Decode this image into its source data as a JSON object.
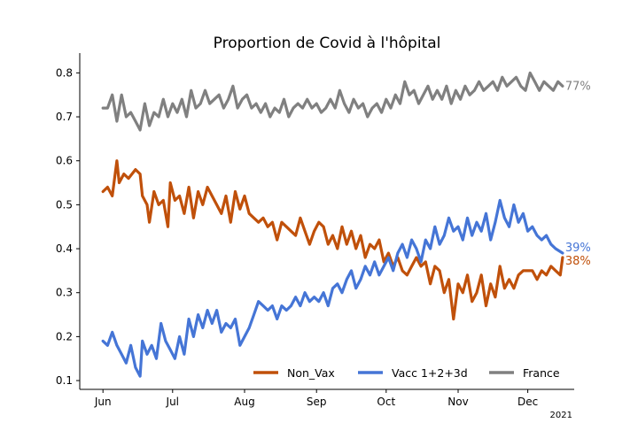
{
  "chart_data": {
    "type": "line",
    "title": "Proportion de Covid à l'hôpital",
    "year_note": "2021",
    "x_tick_labels": [
      "Jun",
      "Jul",
      "Aug",
      "Sep",
      "Oct",
      "Nov",
      "Dec"
    ],
    "x_tick_days": [
      0,
      30,
      61,
      92,
      122,
      153,
      183
    ],
    "xlim": [
      -10,
      203
    ],
    "ylim": [
      0.08,
      0.845
    ],
    "y_ticks": [
      "0.1",
      "0.2",
      "0.3",
      "0.4",
      "0.5",
      "0.6",
      "0.7",
      "0.8"
    ],
    "grid": false,
    "legend_position": "bottom-right",
    "series": [
      {
        "name": "Non_Vax",
        "color": "#c0500a",
        "end_label": "38%",
        "points": [
          [
            0,
            0.53
          ],
          [
            2,
            0.54
          ],
          [
            4,
            0.52
          ],
          [
            6,
            0.6
          ],
          [
            7,
            0.55
          ],
          [
            9,
            0.57
          ],
          [
            11,
            0.56
          ],
          [
            14,
            0.58
          ],
          [
            16,
            0.57
          ],
          [
            17,
            0.52
          ],
          [
            19,
            0.5
          ],
          [
            20,
            0.46
          ],
          [
            22,
            0.53
          ],
          [
            24,
            0.5
          ],
          [
            26,
            0.51
          ],
          [
            28,
            0.45
          ],
          [
            29,
            0.55
          ],
          [
            31,
            0.51
          ],
          [
            33,
            0.52
          ],
          [
            35,
            0.48
          ],
          [
            37,
            0.54
          ],
          [
            39,
            0.47
          ],
          [
            41,
            0.53
          ],
          [
            43,
            0.5
          ],
          [
            45,
            0.54
          ],
          [
            47,
            0.52
          ],
          [
            49,
            0.5
          ],
          [
            51,
            0.48
          ],
          [
            53,
            0.52
          ],
          [
            55,
            0.46
          ],
          [
            57,
            0.53
          ],
          [
            59,
            0.49
          ],
          [
            61,
            0.52
          ],
          [
            63,
            0.48
          ],
          [
            65,
            0.47
          ],
          [
            67,
            0.46
          ],
          [
            69,
            0.47
          ],
          [
            71,
            0.45
          ],
          [
            73,
            0.46
          ],
          [
            75,
            0.42
          ],
          [
            77,
            0.46
          ],
          [
            79,
            0.45
          ],
          [
            81,
            0.44
          ],
          [
            83,
            0.43
          ],
          [
            85,
            0.47
          ],
          [
            87,
            0.44
          ],
          [
            89,
            0.41
          ],
          [
            91,
            0.44
          ],
          [
            93,
            0.46
          ],
          [
            95,
            0.45
          ],
          [
            97,
            0.41
          ],
          [
            99,
            0.43
          ],
          [
            101,
            0.4
          ],
          [
            103,
            0.45
          ],
          [
            105,
            0.41
          ],
          [
            107,
            0.44
          ],
          [
            109,
            0.4
          ],
          [
            111,
            0.43
          ],
          [
            113,
            0.38
          ],
          [
            115,
            0.41
          ],
          [
            117,
            0.4
          ],
          [
            119,
            0.42
          ],
          [
            121,
            0.37
          ],
          [
            123,
            0.39
          ],
          [
            125,
            0.36
          ],
          [
            127,
            0.38
          ],
          [
            129,
            0.35
          ],
          [
            131,
            0.34
          ],
          [
            133,
            0.36
          ],
          [
            135,
            0.38
          ],
          [
            137,
            0.36
          ],
          [
            139,
            0.37
          ],
          [
            141,
            0.32
          ],
          [
            143,
            0.36
          ],
          [
            145,
            0.35
          ],
          [
            147,
            0.3
          ],
          [
            149,
            0.33
          ],
          [
            151,
            0.24
          ],
          [
            153,
            0.32
          ],
          [
            155,
            0.3
          ],
          [
            157,
            0.34
          ],
          [
            159,
            0.28
          ],
          [
            161,
            0.3
          ],
          [
            163,
            0.34
          ],
          [
            165,
            0.27
          ],
          [
            167,
            0.32
          ],
          [
            169,
            0.29
          ],
          [
            171,
            0.36
          ],
          [
            173,
            0.31
          ],
          [
            175,
            0.33
          ],
          [
            177,
            0.31
          ],
          [
            179,
            0.34
          ],
          [
            181,
            0.35
          ],
          [
            183,
            0.35
          ],
          [
            185,
            0.35
          ],
          [
            187,
            0.33
          ],
          [
            189,
            0.35
          ],
          [
            191,
            0.34
          ],
          [
            193,
            0.36
          ],
          [
            195,
            0.35
          ],
          [
            197,
            0.34
          ],
          [
            198,
            0.38
          ]
        ]
      },
      {
        "name": "Vacc 1+2+3d",
        "color": "#4575d6",
        "end_label": "39%",
        "points": [
          [
            0,
            0.19
          ],
          [
            2,
            0.18
          ],
          [
            4,
            0.21
          ],
          [
            6,
            0.18
          ],
          [
            8,
            0.16
          ],
          [
            10,
            0.14
          ],
          [
            12,
            0.18
          ],
          [
            14,
            0.13
          ],
          [
            16,
            0.11
          ],
          [
            17,
            0.19
          ],
          [
            19,
            0.16
          ],
          [
            21,
            0.18
          ],
          [
            23,
            0.15
          ],
          [
            25,
            0.23
          ],
          [
            27,
            0.19
          ],
          [
            29,
            0.17
          ],
          [
            31,
            0.15
          ],
          [
            33,
            0.2
          ],
          [
            35,
            0.16
          ],
          [
            37,
            0.24
          ],
          [
            39,
            0.2
          ],
          [
            41,
            0.25
          ],
          [
            43,
            0.22
          ],
          [
            45,
            0.26
          ],
          [
            47,
            0.23
          ],
          [
            49,
            0.26
          ],
          [
            51,
            0.21
          ],
          [
            53,
            0.23
          ],
          [
            55,
            0.22
          ],
          [
            57,
            0.24
          ],
          [
            59,
            0.18
          ],
          [
            61,
            0.2
          ],
          [
            63,
            0.22
          ],
          [
            65,
            0.25
          ],
          [
            67,
            0.28
          ],
          [
            69,
            0.27
          ],
          [
            71,
            0.26
          ],
          [
            73,
            0.27
          ],
          [
            75,
            0.24
          ],
          [
            77,
            0.27
          ],
          [
            79,
            0.26
          ],
          [
            81,
            0.27
          ],
          [
            83,
            0.29
          ],
          [
            85,
            0.27
          ],
          [
            87,
            0.3
          ],
          [
            89,
            0.28
          ],
          [
            91,
            0.29
          ],
          [
            93,
            0.28
          ],
          [
            95,
            0.3
          ],
          [
            97,
            0.27
          ],
          [
            99,
            0.31
          ],
          [
            101,
            0.32
          ],
          [
            103,
            0.3
          ],
          [
            105,
            0.33
          ],
          [
            107,
            0.35
          ],
          [
            109,
            0.31
          ],
          [
            111,
            0.33
          ],
          [
            113,
            0.36
          ],
          [
            115,
            0.34
          ],
          [
            117,
            0.37
          ],
          [
            119,
            0.34
          ],
          [
            121,
            0.36
          ],
          [
            123,
            0.38
          ],
          [
            125,
            0.35
          ],
          [
            127,
            0.39
          ],
          [
            129,
            0.41
          ],
          [
            131,
            0.38
          ],
          [
            133,
            0.42
          ],
          [
            135,
            0.4
          ],
          [
            137,
            0.37
          ],
          [
            139,
            0.42
          ],
          [
            141,
            0.4
          ],
          [
            143,
            0.45
          ],
          [
            145,
            0.41
          ],
          [
            147,
            0.43
          ],
          [
            149,
            0.47
          ],
          [
            151,
            0.44
          ],
          [
            153,
            0.45
          ],
          [
            155,
            0.42
          ],
          [
            157,
            0.47
          ],
          [
            159,
            0.43
          ],
          [
            161,
            0.46
          ],
          [
            163,
            0.44
          ],
          [
            165,
            0.48
          ],
          [
            167,
            0.42
          ],
          [
            169,
            0.46
          ],
          [
            171,
            0.51
          ],
          [
            173,
            0.47
          ],
          [
            175,
            0.45
          ],
          [
            177,
            0.5
          ],
          [
            179,
            0.46
          ],
          [
            181,
            0.48
          ],
          [
            183,
            0.44
          ],
          [
            185,
            0.45
          ],
          [
            187,
            0.43
          ],
          [
            189,
            0.42
          ],
          [
            191,
            0.43
          ],
          [
            193,
            0.41
          ],
          [
            195,
            0.4
          ],
          [
            198,
            0.39
          ]
        ]
      },
      {
        "name": "France",
        "color": "#808080",
        "end_label": "77%",
        "points": [
          [
            0,
            0.72
          ],
          [
            2,
            0.72
          ],
          [
            4,
            0.75
          ],
          [
            6,
            0.69
          ],
          [
            8,
            0.75
          ],
          [
            10,
            0.7
          ],
          [
            12,
            0.71
          ],
          [
            14,
            0.69
          ],
          [
            16,
            0.67
          ],
          [
            18,
            0.73
          ],
          [
            20,
            0.68
          ],
          [
            22,
            0.71
          ],
          [
            24,
            0.7
          ],
          [
            26,
            0.74
          ],
          [
            28,
            0.7
          ],
          [
            30,
            0.73
          ],
          [
            32,
            0.71
          ],
          [
            34,
            0.74
          ],
          [
            36,
            0.7
          ],
          [
            38,
            0.76
          ],
          [
            40,
            0.72
          ],
          [
            42,
            0.73
          ],
          [
            44,
            0.76
          ],
          [
            46,
            0.73
          ],
          [
            48,
            0.74
          ],
          [
            50,
            0.75
          ],
          [
            52,
            0.72
          ],
          [
            54,
            0.74
          ],
          [
            56,
            0.77
          ],
          [
            58,
            0.72
          ],
          [
            60,
            0.74
          ],
          [
            62,
            0.75
          ],
          [
            64,
            0.72
          ],
          [
            66,
            0.73
          ],
          [
            68,
            0.71
          ],
          [
            70,
            0.73
          ],
          [
            72,
            0.7
          ],
          [
            74,
            0.72
          ],
          [
            76,
            0.71
          ],
          [
            78,
            0.74
          ],
          [
            80,
            0.7
          ],
          [
            82,
            0.72
          ],
          [
            84,
            0.73
          ],
          [
            86,
            0.72
          ],
          [
            88,
            0.74
          ],
          [
            90,
            0.72
          ],
          [
            92,
            0.73
          ],
          [
            94,
            0.71
          ],
          [
            96,
            0.72
          ],
          [
            98,
            0.74
          ],
          [
            100,
            0.72
          ],
          [
            102,
            0.76
          ],
          [
            104,
            0.73
          ],
          [
            106,
            0.71
          ],
          [
            108,
            0.74
          ],
          [
            110,
            0.72
          ],
          [
            112,
            0.73
          ],
          [
            114,
            0.7
          ],
          [
            116,
            0.72
          ],
          [
            118,
            0.73
          ],
          [
            120,
            0.71
          ],
          [
            122,
            0.74
          ],
          [
            124,
            0.72
          ],
          [
            126,
            0.75
          ],
          [
            128,
            0.73
          ],
          [
            130,
            0.78
          ],
          [
            132,
            0.75
          ],
          [
            134,
            0.76
          ],
          [
            136,
            0.73
          ],
          [
            138,
            0.75
          ],
          [
            140,
            0.77
          ],
          [
            142,
            0.74
          ],
          [
            144,
            0.76
          ],
          [
            146,
            0.74
          ],
          [
            148,
            0.77
          ],
          [
            150,
            0.73
          ],
          [
            152,
            0.76
          ],
          [
            154,
            0.74
          ],
          [
            156,
            0.77
          ],
          [
            158,
            0.75
          ],
          [
            160,
            0.76
          ],
          [
            162,
            0.78
          ],
          [
            164,
            0.76
          ],
          [
            166,
            0.77
          ],
          [
            168,
            0.78
          ],
          [
            170,
            0.76
          ],
          [
            172,
            0.79
          ],
          [
            174,
            0.77
          ],
          [
            176,
            0.78
          ],
          [
            178,
            0.79
          ],
          [
            180,
            0.77
          ],
          [
            182,
            0.76
          ],
          [
            184,
            0.8
          ],
          [
            186,
            0.78
          ],
          [
            188,
            0.76
          ],
          [
            190,
            0.78
          ],
          [
            192,
            0.77
          ],
          [
            194,
            0.76
          ],
          [
            196,
            0.78
          ],
          [
            198,
            0.77
          ]
        ]
      }
    ]
  }
}
